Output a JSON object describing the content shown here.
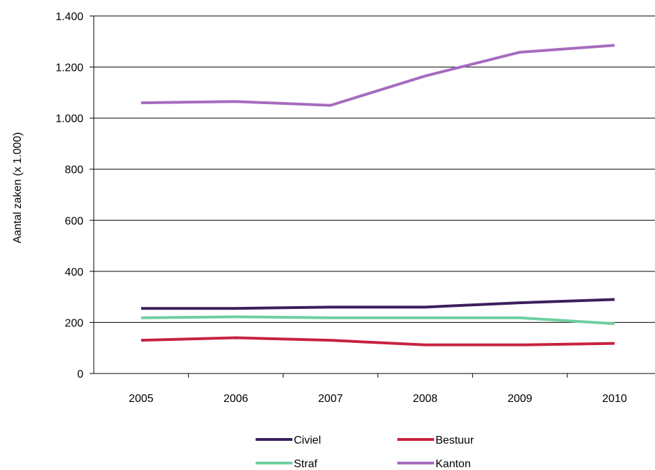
{
  "chart_data": {
    "type": "line",
    "title": "",
    "xlabel": "",
    "ylabel": "Aantal zaken (x 1.000)",
    "categories": [
      "2005",
      "2006",
      "2007",
      "2008",
      "2009",
      "2010"
    ],
    "ylim": [
      0,
      1400
    ],
    "yticks": [
      0,
      200,
      400,
      600,
      800,
      1000,
      1200,
      1400
    ],
    "ytick_labels": [
      "0",
      "200",
      "400",
      "600",
      "800",
      "1.000",
      "1.200",
      "1.400"
    ],
    "grid": "horizontal",
    "legend_position": "bottom",
    "series": [
      {
        "name": "Civiel",
        "color": "#3b1f5c",
        "values": [
          255,
          255,
          260,
          260,
          277,
          290
        ]
      },
      {
        "name": "Bestuur",
        "color": "#c8213f",
        "values": [
          130,
          140,
          130,
          112,
          112,
          118
        ]
      },
      {
        "name": "Straf",
        "color": "#6fcf9f",
        "values": [
          218,
          222,
          218,
          218,
          218,
          195
        ]
      },
      {
        "name": "Kanton",
        "color": "#a66bbf",
        "values": [
          1060,
          1065,
          1050,
          1165,
          1258,
          1285
        ]
      }
    ]
  }
}
